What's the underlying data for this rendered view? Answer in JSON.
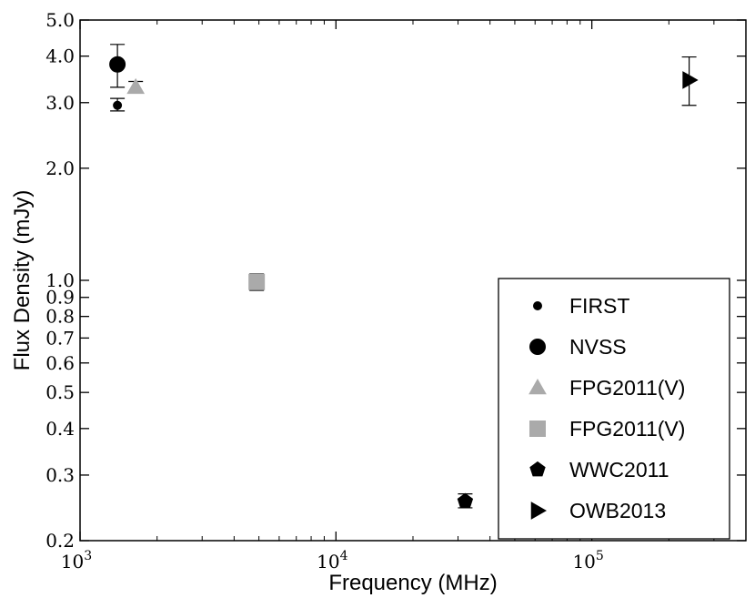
{
  "chart_data": {
    "type": "scatter",
    "xlabel": "Frequency (MHz)",
    "ylabel": "Flux Density (mJy)",
    "xscale": "log",
    "yscale": "log",
    "xlim": [
      1000,
      400000
    ],
    "ylim": [
      0.2,
      5.0
    ],
    "x_ticks": [
      {
        "value": 1000,
        "base": "10",
        "exp": "3"
      },
      {
        "value": 10000,
        "base": "10",
        "exp": "4"
      },
      {
        "value": 100000,
        "base": "10",
        "exp": "5"
      }
    ],
    "y_ticks": [
      {
        "value": 0.2,
        "label": "0.2"
      },
      {
        "value": 0.3,
        "label": "0.3"
      },
      {
        "value": 0.4,
        "label": "0.4"
      },
      {
        "value": 0.5,
        "label": "0.5"
      },
      {
        "value": 0.6,
        "label": "0.6"
      },
      {
        "value": 0.7,
        "label": "0.7"
      },
      {
        "value": 0.8,
        "label": "0.8"
      },
      {
        "value": 0.9,
        "label": "0.9"
      },
      {
        "value": 1.0,
        "label": "1.0"
      },
      {
        "value": 2.0,
        "label": "2.0"
      },
      {
        "value": 3.0,
        "label": "3.0"
      },
      {
        "value": 4.0,
        "label": "4.0"
      },
      {
        "value": 5.0,
        "label": "5.0"
      }
    ],
    "legend_position": "lower-right",
    "series": [
      {
        "name": "FIRST",
        "marker": "circle-small",
        "color": "#000000",
        "points": [
          {
            "x": 1400,
            "y": 2.95,
            "yerr": [
              2.85,
              3.08
            ]
          }
        ]
      },
      {
        "name": "NVSS",
        "marker": "circle",
        "color": "#000000",
        "points": [
          {
            "x": 1400,
            "y": 3.8,
            "yerr": [
              3.3,
              4.3
            ]
          }
        ]
      },
      {
        "name": "FPG2011(V)",
        "marker": "triangle",
        "color": "#aaaaaa",
        "points": [
          {
            "x": 1650,
            "y": 3.3,
            "yerr": [
              3.2,
              3.42
            ]
          }
        ]
      },
      {
        "name": "FPG2011(V)",
        "marker": "square",
        "color": "#aaaaaa",
        "points": [
          {
            "x": 4900,
            "y": 0.99,
            "yerr": [
              0.94,
              1.04
            ]
          }
        ]
      },
      {
        "name": "WWC2011",
        "marker": "pentagon",
        "color": "#000000",
        "points": [
          {
            "x": 32000,
            "y": 0.255,
            "yerr": [
              0.245,
              0.267
            ]
          }
        ]
      },
      {
        "name": "OWB2013",
        "marker": "triangle-right",
        "color": "#000000",
        "points": [
          {
            "x": 240000,
            "y": 3.45,
            "yerr": [
              2.95,
              3.98
            ]
          }
        ]
      }
    ]
  }
}
